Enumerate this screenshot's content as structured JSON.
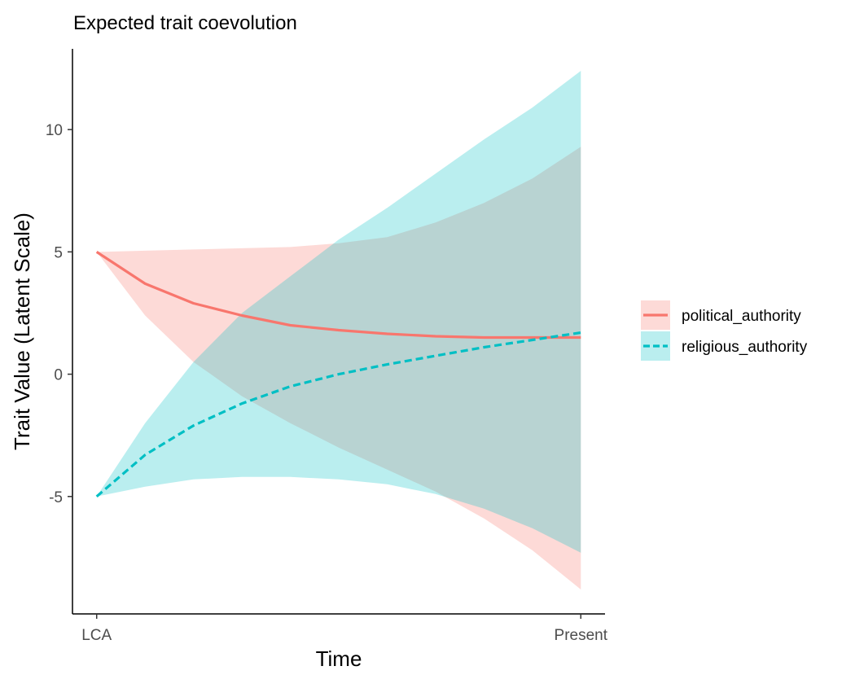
{
  "chart_data": {
    "type": "area",
    "title": "Expected trait coevolution",
    "xlabel": "Time",
    "ylabel": "Trait Value (Latent Scale)",
    "x_tick_labels": [
      "LCA",
      "Present"
    ],
    "y_ticks": [
      -5,
      0,
      5,
      10
    ],
    "x": [
      0,
      0.1,
      0.2,
      0.3,
      0.4,
      0.5,
      0.6,
      0.7,
      0.8,
      0.9,
      1.0
    ],
    "xlim": [
      -0.05,
      1.05
    ],
    "ylim": [
      -9.8,
      13.3
    ],
    "grid": false,
    "legend_position": "right",
    "series": [
      {
        "name": "political_authority",
        "color": "#F8766D",
        "line_style": "solid",
        "mean": [
          5.0,
          3.7,
          2.9,
          2.4,
          2.0,
          1.8,
          1.65,
          1.55,
          1.5,
          1.5,
          1.5
        ],
        "lower": [
          5.0,
          2.4,
          0.5,
          -0.9,
          -2.0,
          -3.0,
          -3.9,
          -4.8,
          -5.9,
          -7.2,
          -8.8
        ],
        "upper": [
          5.0,
          5.05,
          5.1,
          5.15,
          5.2,
          5.35,
          5.6,
          6.2,
          7.0,
          8.0,
          9.3
        ]
      },
      {
        "name": "religious_authority",
        "color": "#00BFC4",
        "line_style": "dashed",
        "mean": [
          -5.0,
          -3.3,
          -2.1,
          -1.2,
          -0.5,
          0.0,
          0.4,
          0.75,
          1.1,
          1.4,
          1.7
        ],
        "lower": [
          -5.0,
          -4.6,
          -4.3,
          -4.2,
          -4.2,
          -4.3,
          -4.5,
          -4.9,
          -5.5,
          -6.3,
          -7.3
        ],
        "upper": [
          -5.0,
          -2.0,
          0.5,
          2.5,
          4.0,
          5.5,
          6.8,
          8.2,
          9.6,
          10.9,
          12.4
        ]
      }
    ]
  }
}
